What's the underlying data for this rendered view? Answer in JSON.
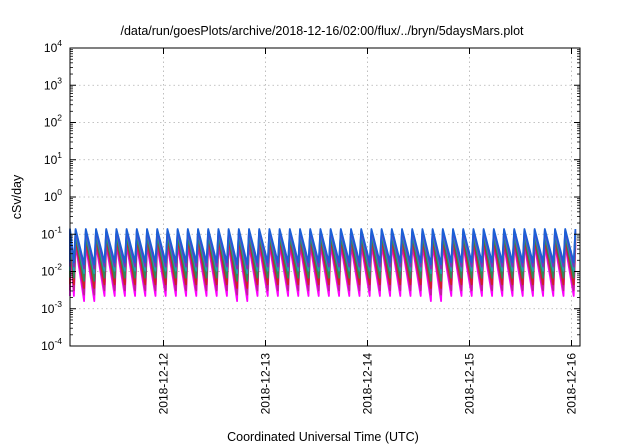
{
  "chart_data": {
    "type": "line",
    "title": "/data/run/goesPlots/archive/2018-12-16/02:00/flux/../bryn/5daysMars.plot",
    "xlabel": "Coordinated Universal Time (UTC)",
    "ylabel": "cSv/day",
    "yscale": "log",
    "ylim": [
      0.0001,
      10000
    ],
    "y_ticks": [
      {
        "base": "10",
        "exp": "-4",
        "value": 0.0001
      },
      {
        "base": "10",
        "exp": "-3",
        "value": 0.001
      },
      {
        "base": "10",
        "exp": "-2",
        "value": 0.01
      },
      {
        "base": "10",
        "exp": "-1",
        "value": 0.1
      },
      {
        "base": "10",
        "exp": "0",
        "value": 1
      },
      {
        "base": "10",
        "exp": "1",
        "value": 10
      },
      {
        "base": "10",
        "exp": "2",
        "value": 100
      },
      {
        "base": "10",
        "exp": "3",
        "value": 1000
      },
      {
        "base": "10",
        "exp": "4",
        "value": 10000
      }
    ],
    "xlim": [
      "2018-12-11T02:00",
      "2018-12-16T02:00"
    ],
    "x_ticks": [
      "2018-12-12",
      "2018-12-13",
      "2018-12-14",
      "2018-12-15",
      "2018-12-16"
    ],
    "grid": true,
    "cycle_hours": 2.4,
    "cycle_peak_fraction": 0.17,
    "series": [
      {
        "color": "#ff00ff",
        "peak": 0.052,
        "trough": 0.0022,
        "trough_low": 0.0016
      },
      {
        "color": "#c0209a",
        "peak": 0.062,
        "trough": 0.0031,
        "trough_low": 0.0024
      },
      {
        "color": "#d21e28",
        "peak": 0.078,
        "trough": 0.0045,
        "trough_low": 0.0036
      },
      {
        "color": "#2e8b57",
        "peak": 0.094,
        "trough": 0.0068,
        "trough_low": 0.0056
      },
      {
        "color": "#1ea0b4",
        "peak": 0.112,
        "trough": 0.0105,
        "trough_low": 0.009
      },
      {
        "color": "#7b2fbe",
        "peak": 0.125,
        "trough": 0.0135,
        "trough_low": 0.012
      },
      {
        "color": "#1b5fd6",
        "peak": 0.138,
        "trough": 0.0175,
        "trough_low": 0.0155
      }
    ]
  }
}
